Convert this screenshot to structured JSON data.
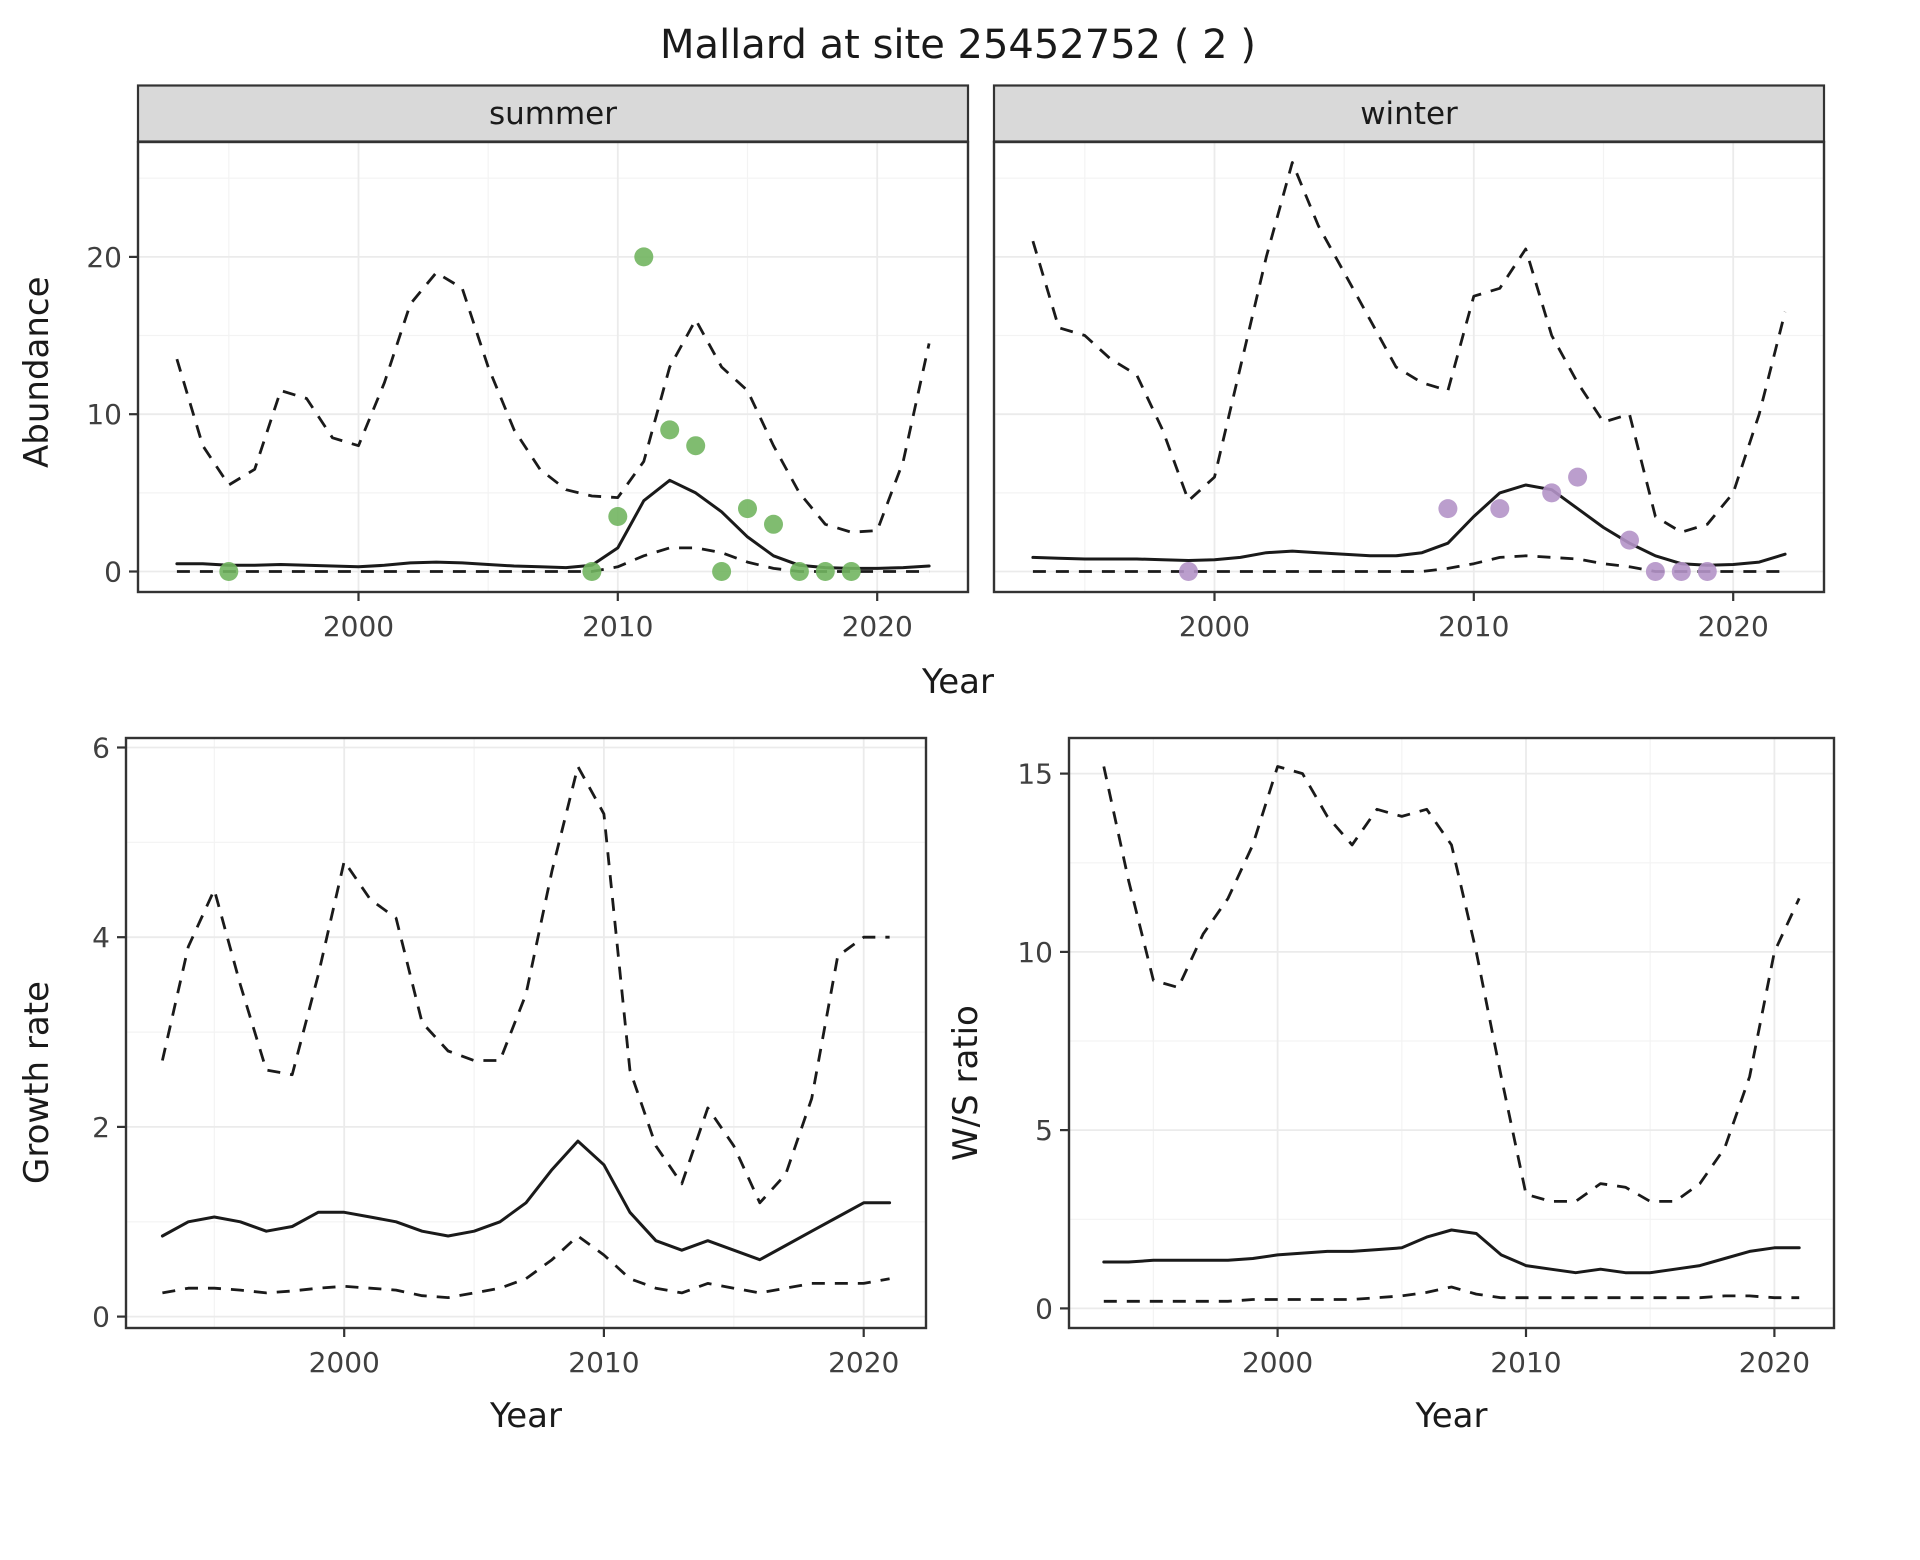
{
  "title": "Mallard at site 25452752 ( 2 )",
  "colors": {
    "summer_points": "#72b560",
    "winter_points": "#b494c8",
    "line": "#1a1a1a",
    "strip_bg": "#d9d9d9",
    "strip_border": "#333333",
    "panel_border": "#333333"
  },
  "chart_data": [
    {
      "id": "abundance-summer",
      "type": "line",
      "facet_label": "summer",
      "ylabel": "Abundance",
      "xlabel": "Year",
      "xlim": [
        1991.5,
        2023.5
      ],
      "ylim": [
        -1.3,
        27.3
      ],
      "xticks": [
        2000,
        2010,
        2020
      ],
      "xtick_labels": [
        "2000",
        "2010",
        "2020"
      ],
      "xminor": [
        1995,
        2005,
        2015
      ],
      "yticks": [
        0,
        10,
        20
      ],
      "ytick_labels": [
        "0",
        "10",
        "20"
      ],
      "yminor": [
        5,
        15,
        25
      ],
      "x": [
        1993,
        1994,
        1995,
        1996,
        1997,
        1998,
        1999,
        2000,
        2001,
        2002,
        2003,
        2004,
        2005,
        2006,
        2007,
        2008,
        2009,
        2010,
        2011,
        2012,
        2013,
        2014,
        2015,
        2016,
        2017,
        2018,
        2019,
        2020,
        2021,
        2022
      ],
      "series": [
        {
          "name": "upper-ci",
          "style": "dashed",
          "values": [
            13.5,
            8,
            5.5,
            6.5,
            11.5,
            11,
            8.5,
            8,
            12,
            17,
            19,
            18,
            13,
            9,
            6.5,
            5.2,
            4.8,
            4.7,
            7,
            13,
            16,
            13,
            11.5,
            8,
            5,
            3,
            2.5,
            2.6,
            7,
            14.5
          ]
        },
        {
          "name": "mean",
          "style": "solid",
          "values": [
            0.5,
            0.5,
            0.4,
            0.4,
            0.45,
            0.4,
            0.35,
            0.3,
            0.4,
            0.55,
            0.6,
            0.55,
            0.45,
            0.35,
            0.3,
            0.25,
            0.4,
            1.5,
            4.5,
            5.8,
            5.0,
            3.8,
            2.2,
            1.0,
            0.4,
            0.25,
            0.2,
            0.2,
            0.25,
            0.35
          ]
        },
        {
          "name": "lower-ci",
          "style": "dashed",
          "values": [
            0,
            0,
            0,
            0,
            0,
            0,
            0,
            0,
            0,
            0,
            0,
            0,
            0,
            0,
            0,
            0,
            0,
            0.3,
            1.0,
            1.5,
            1.5,
            1.2,
            0.6,
            0.2,
            0,
            0,
            0,
            0,
            0,
            0
          ]
        }
      ],
      "points": {
        "name": "observed-counts-summer",
        "color": "summer_points",
        "x": [
          1995,
          2009,
          2010,
          2011,
          2012,
          2013,
          2014,
          2015,
          2016,
          2017,
          2018,
          2019
        ],
        "y": [
          0,
          0,
          3.5,
          20,
          9,
          8,
          0,
          4,
          3,
          0,
          0,
          0
        ]
      }
    },
    {
      "id": "abundance-winter",
      "type": "line",
      "facet_label": "winter",
      "ylabel": "Abundance",
      "xlabel": "Year",
      "xlim": [
        1991.5,
        2023.5
      ],
      "ylim": [
        -1.3,
        27.3
      ],
      "xticks": [
        2000,
        2010,
        2020
      ],
      "xtick_labels": [
        "2000",
        "2010",
        "2020"
      ],
      "xminor": [
        1995,
        2005,
        2015
      ],
      "yticks": [
        0,
        10,
        20
      ],
      "ytick_labels": [
        "0",
        "10",
        "20"
      ],
      "yminor": [
        5,
        15,
        25
      ],
      "x": [
        1993,
        1994,
        1995,
        1996,
        1997,
        1998,
        1999,
        2000,
        2001,
        2002,
        2003,
        2004,
        2005,
        2006,
        2007,
        2008,
        2009,
        2010,
        2011,
        2012,
        2013,
        2014,
        2015,
        2016,
        2017,
        2018,
        2019,
        2020,
        2021,
        2022
      ],
      "series": [
        {
          "name": "upper-ci",
          "style": "dashed",
          "values": [
            21,
            15.5,
            15,
            13.5,
            12.5,
            9,
            4.5,
            6,
            13,
            20,
            26,
            22,
            19,
            16,
            13,
            12,
            11.5,
            17.5,
            18,
            20.5,
            15,
            12,
            9.5,
            10,
            3.5,
            2.5,
            3,
            5,
            10,
            16.5
          ]
        },
        {
          "name": "mean",
          "style": "solid",
          "values": [
            0.9,
            0.85,
            0.8,
            0.8,
            0.8,
            0.75,
            0.7,
            0.75,
            0.9,
            1.2,
            1.3,
            1.2,
            1.1,
            1.0,
            1.0,
            1.2,
            1.8,
            3.5,
            5.0,
            5.5,
            5.2,
            4.0,
            2.8,
            1.8,
            1.0,
            0.5,
            0.4,
            0.45,
            0.6,
            1.1
          ]
        },
        {
          "name": "lower-ci",
          "style": "dashed",
          "values": [
            0,
            0,
            0,
            0,
            0,
            0,
            0,
            0,
            0,
            0,
            0,
            0,
            0,
            0,
            0,
            0,
            0.2,
            0.5,
            0.9,
            1.0,
            0.9,
            0.8,
            0.5,
            0.3,
            0,
            0,
            0,
            0,
            0,
            0
          ]
        }
      ],
      "points": {
        "name": "observed-counts-winter",
        "color": "winter_points",
        "x": [
          1999,
          2009,
          2011,
          2013,
          2014,
          2016,
          2017,
          2018,
          2019
        ],
        "y": [
          0,
          4,
          4,
          5,
          6,
          2,
          0,
          0,
          0
        ]
      }
    },
    {
      "id": "growth-rate",
      "type": "line",
      "facet_label": "",
      "ylabel": "Growth rate",
      "xlabel": "Year",
      "xlim": [
        1991.6,
        2022.4
      ],
      "ylim": [
        -0.12,
        6.1
      ],
      "xticks": [
        2000,
        2010,
        2020
      ],
      "xtick_labels": [
        "2000",
        "2010",
        "2020"
      ],
      "xminor": [
        1995,
        2005,
        2015
      ],
      "yticks": [
        0,
        2,
        4,
        6
      ],
      "ytick_labels": [
        "0",
        "2",
        "4",
        "6"
      ],
      "yminor": [
        1,
        3,
        5
      ],
      "x": [
        1993,
        1994,
        1995,
        1996,
        1997,
        1998,
        1999,
        2000,
        2001,
        2002,
        2003,
        2004,
        2005,
        2006,
        2007,
        2008,
        2009,
        2010,
        2011,
        2012,
        2013,
        2014,
        2015,
        2016,
        2017,
        2018,
        2019,
        2020,
        2021
      ],
      "series": [
        {
          "name": "upper-ci",
          "style": "dashed",
          "values": [
            2.7,
            3.9,
            4.5,
            3.5,
            2.6,
            2.55,
            3.6,
            4.8,
            4.4,
            4.2,
            3.1,
            2.8,
            2.7,
            2.7,
            3.4,
            4.7,
            5.8,
            5.3,
            2.6,
            1.8,
            1.4,
            2.2,
            1.8,
            1.2,
            1.5,
            2.3,
            3.8,
            4.0,
            4.0
          ]
        },
        {
          "name": "mean",
          "style": "solid",
          "values": [
            0.85,
            1.0,
            1.05,
            1.0,
            0.9,
            0.95,
            1.1,
            1.1,
            1.05,
            1.0,
            0.9,
            0.85,
            0.9,
            1.0,
            1.2,
            1.55,
            1.85,
            1.6,
            1.1,
            0.8,
            0.7,
            0.8,
            0.7,
            0.6,
            0.75,
            0.9,
            1.05,
            1.2,
            1.2
          ]
        },
        {
          "name": "lower-ci",
          "style": "dashed",
          "values": [
            0.25,
            0.3,
            0.3,
            0.28,
            0.25,
            0.27,
            0.3,
            0.32,
            0.3,
            0.28,
            0.22,
            0.2,
            0.25,
            0.3,
            0.4,
            0.6,
            0.85,
            0.65,
            0.4,
            0.3,
            0.25,
            0.35,
            0.3,
            0.25,
            0.3,
            0.35,
            0.35,
            0.35,
            0.4
          ]
        }
      ],
      "points": null
    },
    {
      "id": "ws-ratio",
      "type": "line",
      "facet_label": "",
      "ylabel": "W/S ratio",
      "xlabel": "Year",
      "xlim": [
        1991.6,
        2022.4
      ],
      "ylim": [
        -0.55,
        16.0
      ],
      "xticks": [
        2000,
        2010,
        2020
      ],
      "xtick_labels": [
        "2000",
        "2010",
        "2020"
      ],
      "xminor": [
        1995,
        2005,
        2015
      ],
      "yticks": [
        0,
        5,
        10,
        15
      ],
      "ytick_labels": [
        "0",
        "5",
        "10",
        "15"
      ],
      "yminor": [
        2.5,
        7.5,
        12.5
      ],
      "x": [
        1993,
        1994,
        1995,
        1996,
        1997,
        1998,
        1999,
        2000,
        2001,
        2002,
        2003,
        2004,
        2005,
        2006,
        2007,
        2008,
        2009,
        2010,
        2011,
        2012,
        2013,
        2014,
        2015,
        2016,
        2017,
        2018,
        2019,
        2020,
        2021
      ],
      "series": [
        {
          "name": "upper-ci",
          "style": "dashed",
          "values": [
            15.2,
            12,
            9.2,
            9,
            10.5,
            11.5,
            13,
            15.2,
            15,
            13.8,
            13,
            14,
            13.8,
            14,
            13,
            10,
            6.5,
            3.2,
            3,
            3,
            3.5,
            3.4,
            3,
            3,
            3.5,
            4.5,
            6.5,
            10,
            11.5
          ]
        },
        {
          "name": "mean",
          "style": "solid",
          "values": [
            1.3,
            1.3,
            1.35,
            1.35,
            1.35,
            1.35,
            1.4,
            1.5,
            1.55,
            1.6,
            1.6,
            1.65,
            1.7,
            2.0,
            2.2,
            2.1,
            1.5,
            1.2,
            1.1,
            1.0,
            1.1,
            1.0,
            1.0,
            1.1,
            1.2,
            1.4,
            1.6,
            1.7,
            1.7
          ]
        },
        {
          "name": "lower-ci",
          "style": "dashed",
          "values": [
            0.2,
            0.2,
            0.2,
            0.2,
            0.2,
            0.2,
            0.25,
            0.25,
            0.25,
            0.25,
            0.25,
            0.3,
            0.35,
            0.45,
            0.6,
            0.4,
            0.3,
            0.3,
            0.3,
            0.3,
            0.3,
            0.3,
            0.3,
            0.3,
            0.3,
            0.35,
            0.35,
            0.3,
            0.3
          ]
        }
      ],
      "points": null
    }
  ]
}
